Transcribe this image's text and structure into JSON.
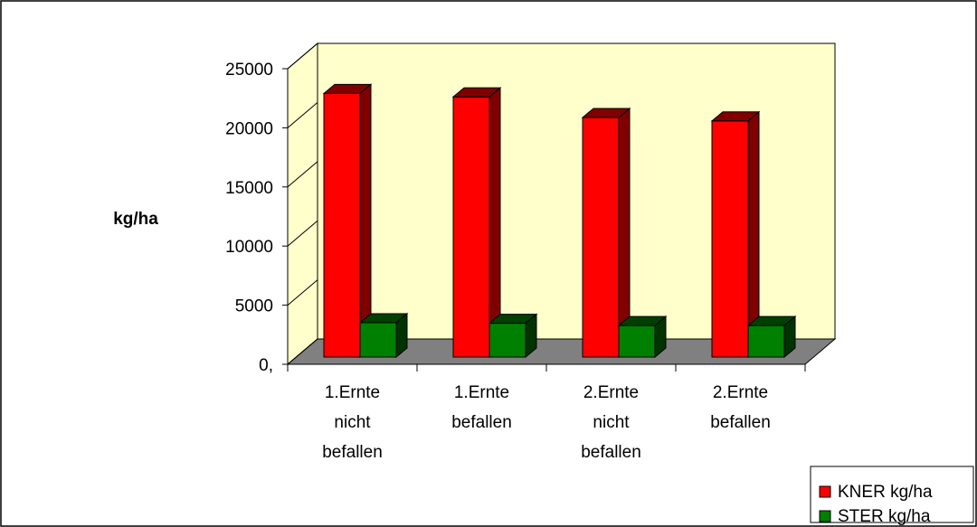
{
  "chart_data": {
    "type": "bar",
    "title": "",
    "xlabel": "",
    "ylabel": "kg/ha",
    "ylim": [
      0,
      25000
    ],
    "yticks": [
      "0,",
      "5000",
      "10000",
      "15000",
      "20000",
      "25000"
    ],
    "categories": [
      [
        "1.Ernte",
        "nicht",
        "befallen"
      ],
      [
        "1.Ernte",
        "befallen"
      ],
      [
        "2.Ernte",
        "nicht",
        "befallen"
      ],
      [
        "2.Ernte",
        "befallen"
      ]
    ],
    "series": [
      {
        "name": "KNER kg/ha",
        "values": [
          23000,
          22700,
          20900,
          20600
        ]
      },
      {
        "name": "STER kg/ha",
        "values": [
          3000,
          2950,
          2750,
          2750
        ]
      }
    ],
    "legend": "bottom-right",
    "grid": false
  },
  "colors": {
    "wall": "#ffffcc",
    "floor": "#808080",
    "series_front": [
      "#ff0000",
      "#008000"
    ],
    "series_top": [
      "#800000",
      "#004000"
    ],
    "series_side": [
      "#800000",
      "#003300"
    ]
  }
}
